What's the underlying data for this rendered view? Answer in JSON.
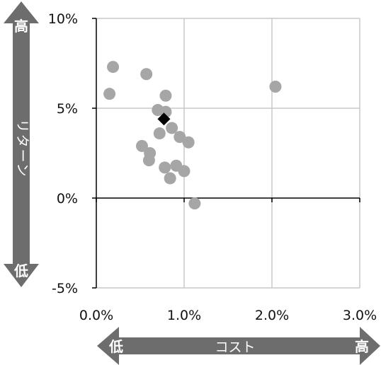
{
  "chart_data": {
    "type": "scatter",
    "title": "",
    "xlim": [
      0.0,
      3.0
    ],
    "ylim": [
      -5,
      10
    ],
    "x_ticks": [
      "0.0%",
      "1.0%",
      "2.0%",
      "3.0%"
    ],
    "y_ticks": [
      "10%",
      "5%",
      "0%",
      "-5%"
    ],
    "x_axis_label": "コスト",
    "y_axis_label": "リターン",
    "x_low_label": "低",
    "x_high_label": "高",
    "y_high_label": "高",
    "y_low_label": "低",
    "grid": true,
    "series": [
      {
        "marker": "circle",
        "color": "#a6a6a6",
        "points": [
          {
            "x": 0.19,
            "y": 7.3
          },
          {
            "x": 0.15,
            "y": 5.8
          },
          {
            "x": 0.57,
            "y": 6.9
          },
          {
            "x": 0.79,
            "y": 5.7
          },
          {
            "x": 0.7,
            "y": 4.9
          },
          {
            "x": 0.79,
            "y": 4.8
          },
          {
            "x": 0.86,
            "y": 3.9
          },
          {
            "x": 0.72,
            "y": 3.6
          },
          {
            "x": 0.95,
            "y": 3.4
          },
          {
            "x": 1.05,
            "y": 3.1
          },
          {
            "x": 0.52,
            "y": 2.9
          },
          {
            "x": 0.61,
            "y": 2.5
          },
          {
            "x": 0.6,
            "y": 2.1
          },
          {
            "x": 0.78,
            "y": 1.7
          },
          {
            "x": 0.91,
            "y": 1.8
          },
          {
            "x": 1.0,
            "y": 1.5
          },
          {
            "x": 0.84,
            "y": 1.1
          },
          {
            "x": 1.12,
            "y": -0.3
          },
          {
            "x": 2.04,
            "y": 6.2
          }
        ]
      },
      {
        "marker": "diamond",
        "color": "#000000",
        "points": [
          {
            "x": 0.77,
            "y": 4.4
          }
        ]
      }
    ]
  },
  "colors": {
    "grid": "#c8c8c8",
    "axis": "#000000",
    "arrow": "#6d6d6d",
    "arrow_text": "#ffffff"
  }
}
